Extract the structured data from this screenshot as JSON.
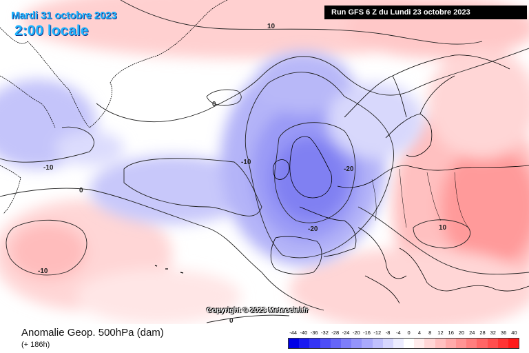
{
  "header": {
    "date": "Mardi 31 octobre 2023",
    "time": "2:00 locale",
    "run": "Run GFS 6 Z du Lundi 23 octobre 2023"
  },
  "copyright": "Copyright © 2023 Meteociel.fr",
  "footer": {
    "title": "Anomalie Geop. 500hPa (dam)",
    "subtitle": "(+ 186h)"
  },
  "legend": {
    "labels": [
      "-44",
      "-40",
      "-36",
      "-32",
      "-28",
      "-24",
      "-20",
      "-16",
      "-12",
      "-8",
      "-4",
      "0",
      "4",
      "8",
      "12",
      "16",
      "20",
      "24",
      "28",
      "32",
      "36",
      "40"
    ],
    "colors": [
      "#0000e6",
      "#1a1af0",
      "#3434f4",
      "#4e4ef6",
      "#6666f8",
      "#7e7efa",
      "#9494fb",
      "#aaaafc",
      "#c0c0fd",
      "#d6d6fe",
      "#ececff",
      "#ffffff",
      "#ffecec",
      "#ffd6d6",
      "#ffc0c0",
      "#ffaaaa",
      "#ff9494",
      "#ff7e7e",
      "#ff6666",
      "#ff4e4e",
      "#ff3434",
      "#ff1a1a"
    ]
  },
  "contour_labels": [
    "10",
    "0",
    "-10",
    "-10",
    "0",
    "-10",
    "-20",
    "-20",
    "10",
    "0"
  ],
  "colors": {
    "background_neutral": "#ffffff",
    "negative_anomaly": "#9494fb",
    "positive_anomaly": "#ff9494",
    "coastline": "#000000",
    "contour": "#222222"
  }
}
